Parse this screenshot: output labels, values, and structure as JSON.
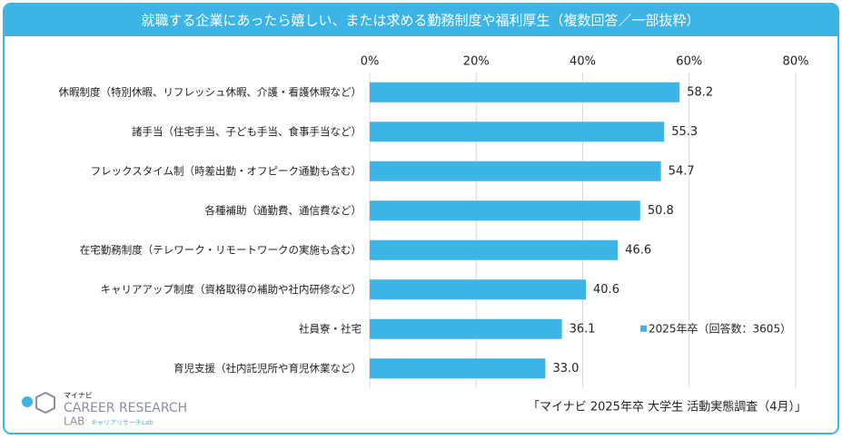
{
  "chart_data": {
    "type": "bar",
    "orientation": "horizontal",
    "title": "就職する企業にあったら嬉しい、または求める勤務制度や福利厚生（複数回答／一部抜粋）",
    "categories": [
      "休暇制度（特別休暇、リフレッシュ休暇、介護・看護休暇など）",
      "諸手当（住宅手当、子ども手当、食事手当など）",
      "フレックスタイム制（時差出勤・オフピーク通勤も含む）",
      "各種補助（通勤費、通信費など）",
      "在宅勤務制度（テレワーク・リモートワークの実施も含む）",
      "キャリアアップ制度（資格取得の補助や社内研修など）",
      "社員寮・社宅",
      "育児支援（社内託児所や育児休業など）"
    ],
    "series": [
      {
        "name": "2025年卒（回答数：3605）",
        "color": "#3cb4e6",
        "values": [
          58.2,
          55.3,
          54.7,
          50.8,
          46.6,
          40.6,
          36.1,
          33.0
        ],
        "value_labels": [
          "58.2",
          "55.3",
          "54.7",
          "50.8",
          "46.6",
          "40.6",
          "36.1",
          "33.0"
        ]
      }
    ],
    "xlim": [
      0,
      80
    ],
    "xticks": [
      {
        "value": 0,
        "label": "0%"
      },
      {
        "value": 20,
        "label": "20%"
      },
      {
        "value": 40,
        "label": "40%"
      },
      {
        "value": 60,
        "label": "60%"
      },
      {
        "value": 80,
        "label": "80%"
      }
    ],
    "grid": true,
    "legend": "center right",
    "source": "「マイナビ 2025年卒 大学生 活動実態調査（4月）」"
  },
  "logo": {
    "brand": "マイナビ",
    "line1": "CAREER RESEARCH",
    "line2": "LAB",
    "sub": "キャリアリサーチLab"
  }
}
